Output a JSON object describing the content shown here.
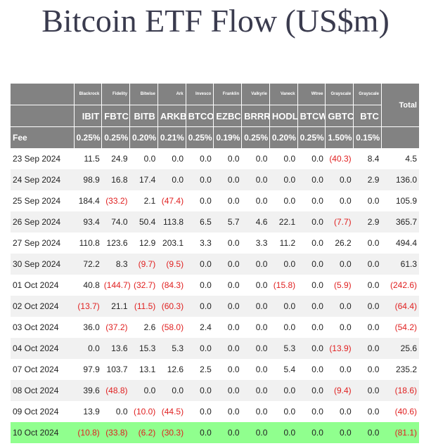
{
  "title": "Bitcoin ETF Flow (US$m)",
  "colors": {
    "header_bg": "#828282",
    "negative": "#e02020",
    "highlight_row": "#90ff8e",
    "stripe": "#f1f1f1"
  },
  "header": {
    "total_label": "Total",
    "fee_label": "Fee",
    "issuers": [
      "Blackrock",
      "Fidelity",
      "Bitwise",
      "Ark",
      "Invesco",
      "Franklin",
      "Valkyrie",
      "Vaneck",
      "Wtree",
      "Grayscale",
      "Grayscale"
    ],
    "tickers": [
      "IBIT",
      "FBTC",
      "BITB",
      "ARKB",
      "BTCO",
      "EZBC",
      "BRRR",
      "HODL",
      "BTCW",
      "GBTC",
      "BTC"
    ],
    "fees": [
      "0.25%",
      "0.25%",
      "0.20%",
      "0.21%",
      "0.25%",
      "0.19%",
      "0.25%",
      "0.20%",
      "0.25%",
      "1.50%",
      "0.15%"
    ]
  },
  "rows": [
    {
      "date": "23 Sep 2024",
      "values": [
        "11.5",
        "24.9",
        "0.0",
        "0.0",
        "0.0",
        "0.0",
        "0.0",
        "0.0",
        "0.0",
        "(40.3)",
        "8.4"
      ],
      "total": "4.5"
    },
    {
      "date": "24 Sep 2024",
      "values": [
        "98.9",
        "16.8",
        "17.4",
        "0.0",
        "0.0",
        "0.0",
        "0.0",
        "0.0",
        "0.0",
        "0.0",
        "2.9"
      ],
      "total": "136.0"
    },
    {
      "date": "25 Sep 2024",
      "values": [
        "184.4",
        "(33.2)",
        "2.1",
        "(47.4)",
        "0.0",
        "0.0",
        "0.0",
        "0.0",
        "0.0",
        "0.0",
        "0.0"
      ],
      "total": "105.9"
    },
    {
      "date": "26 Sep 2024",
      "values": [
        "93.4",
        "74.0",
        "50.4",
        "113.8",
        "6.5",
        "5.7",
        "4.6",
        "22.1",
        "0.0",
        "(7.7)",
        "2.9"
      ],
      "total": "365.7"
    },
    {
      "date": "27 Sep 2024",
      "values": [
        "110.8",
        "123.6",
        "12.9",
        "203.1",
        "3.3",
        "0.0",
        "3.3",
        "11.2",
        "0.0",
        "26.2",
        "0.0"
      ],
      "total": "494.4"
    },
    {
      "date": "30 Sep 2024",
      "values": [
        "72.2",
        "8.3",
        "(9.7)",
        "(9.5)",
        "0.0",
        "0.0",
        "0.0",
        "0.0",
        "0.0",
        "0.0",
        "0.0"
      ],
      "total": "61.3"
    },
    {
      "date": "01 Oct 2024",
      "values": [
        "40.8",
        "(144.7)",
        "(32.7)",
        "(84.3)",
        "0.0",
        "0.0",
        "0.0",
        "(15.8)",
        "0.0",
        "(5.9)",
        "0.0"
      ],
      "total": "(242.6)"
    },
    {
      "date": "02 Oct 2024",
      "values": [
        "(13.7)",
        "21.1",
        "(11.5)",
        "(60.3)",
        "0.0",
        "0.0",
        "0.0",
        "0.0",
        "0.0",
        "0.0",
        "0.0"
      ],
      "total": "(64.4)"
    },
    {
      "date": "03 Oct 2024",
      "values": [
        "36.0",
        "(37.2)",
        "2.6",
        "(58.0)",
        "2.4",
        "0.0",
        "0.0",
        "0.0",
        "0.0",
        "0.0",
        "0.0"
      ],
      "total": "(54.2)"
    },
    {
      "date": "04 Oct 2024",
      "values": [
        "0.0",
        "13.6",
        "15.3",
        "5.3",
        "0.0",
        "0.0",
        "0.0",
        "5.3",
        "0.0",
        "(13.9)",
        "0.0"
      ],
      "total": "25.6"
    },
    {
      "date": "07 Oct 2024",
      "values": [
        "97.9",
        "103.7",
        "13.1",
        "12.6",
        "2.5",
        "0.0",
        "0.0",
        "5.4",
        "0.0",
        "0.0",
        "0.0"
      ],
      "total": "235.2"
    },
    {
      "date": "08 Oct 2024",
      "values": [
        "39.6",
        "(48.8)",
        "0.0",
        "0.0",
        "0.0",
        "0.0",
        "0.0",
        "0.0",
        "0.0",
        "(9.4)",
        "0.0"
      ],
      "total": "(18.6)"
    },
    {
      "date": "09 Oct 2024",
      "values": [
        "13.9",
        "0.0",
        "(10.0)",
        "(44.5)",
        "0.0",
        "0.0",
        "0.0",
        "0.0",
        "0.0",
        "0.0",
        "0.0"
      ],
      "total": "(40.6)"
    },
    {
      "date": "10 Oct 2024",
      "values": [
        "(10.8)",
        "(33.8)",
        "(6.2)",
        "(30.3)",
        "0.0",
        "0.0",
        "0.0",
        "0.0",
        "0.0",
        "0.0",
        "0.0"
      ],
      "total": "(81.1)",
      "highlighted": true
    }
  ]
}
